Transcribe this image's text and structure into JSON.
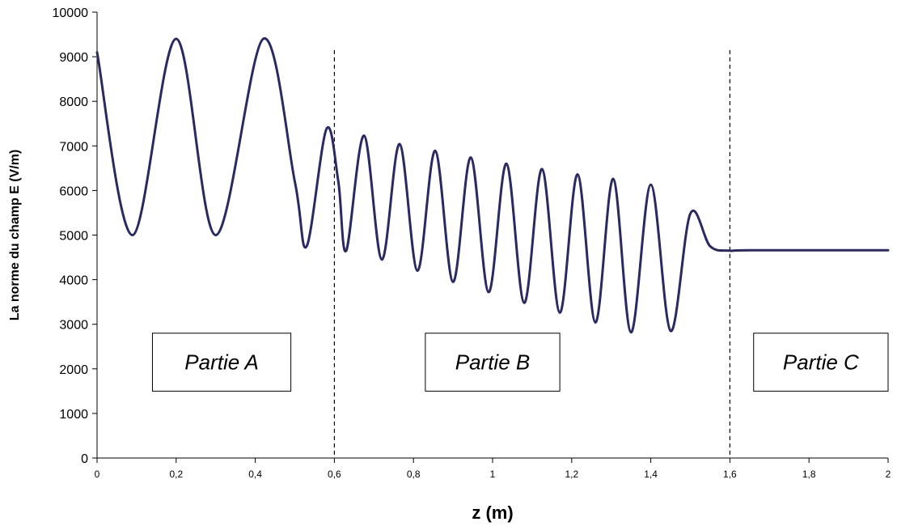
{
  "chart_data": {
    "type": "line",
    "xlabel": "z (m)",
    "ylabel": "La norme du champ E (V/m)",
    "xlim": [
      0,
      2
    ],
    "ylim": [
      0,
      10000
    ],
    "x_ticks": [
      "0",
      "0,2",
      "0,4",
      "0,6",
      "0,8",
      "1",
      "1,2",
      "1,4",
      "1,6",
      "1,8",
      "2"
    ],
    "y_ticks": [
      "0",
      "1000",
      "2000",
      "3000",
      "4000",
      "5000",
      "6000",
      "7000",
      "8000",
      "9000",
      "10000"
    ],
    "grid": false,
    "legend": "none",
    "series_color": "#2a2a63",
    "dividers": [
      0.6,
      1.6
    ],
    "regions": [
      {
        "label": "Partie A",
        "x_range": [
          0.14,
          0.49
        ],
        "y_range": [
          1500,
          2800
        ]
      },
      {
        "label": "Partie B",
        "x_range": [
          0.83,
          1.17
        ],
        "y_range": [
          1500,
          2800
        ]
      },
      {
        "label": "Partie C",
        "x_range": [
          1.66,
          2.0
        ],
        "y_range": [
          1500,
          2800
        ]
      }
    ],
    "series": [
      {
        "x": [
          0,
          0.09,
          0.2,
          0.3,
          0.42,
          0.5,
          0.53,
          0.58,
          0.61,
          0.63,
          0.675,
          0.72,
          0.765,
          0.81,
          0.855,
          0.9,
          0.945,
          0.99,
          1.035,
          1.08,
          1.125,
          1.17,
          1.215,
          1.26,
          1.305,
          1.35,
          1.4,
          1.45,
          1.5,
          1.55,
          1.6,
          1.65,
          2.0
        ],
        "y": [
          9100,
          5000,
          9400,
          5000,
          9400,
          6200,
          4750,
          7380,
          6200,
          4650,
          7230,
          4450,
          7040,
          4200,
          6890,
          3950,
          6740,
          3720,
          6600,
          3480,
          6480,
          3260,
          6360,
          3040,
          6260,
          2820,
          6130,
          2850,
          5480,
          4750,
          4650,
          4660,
          4660
        ]
      }
    ]
  }
}
